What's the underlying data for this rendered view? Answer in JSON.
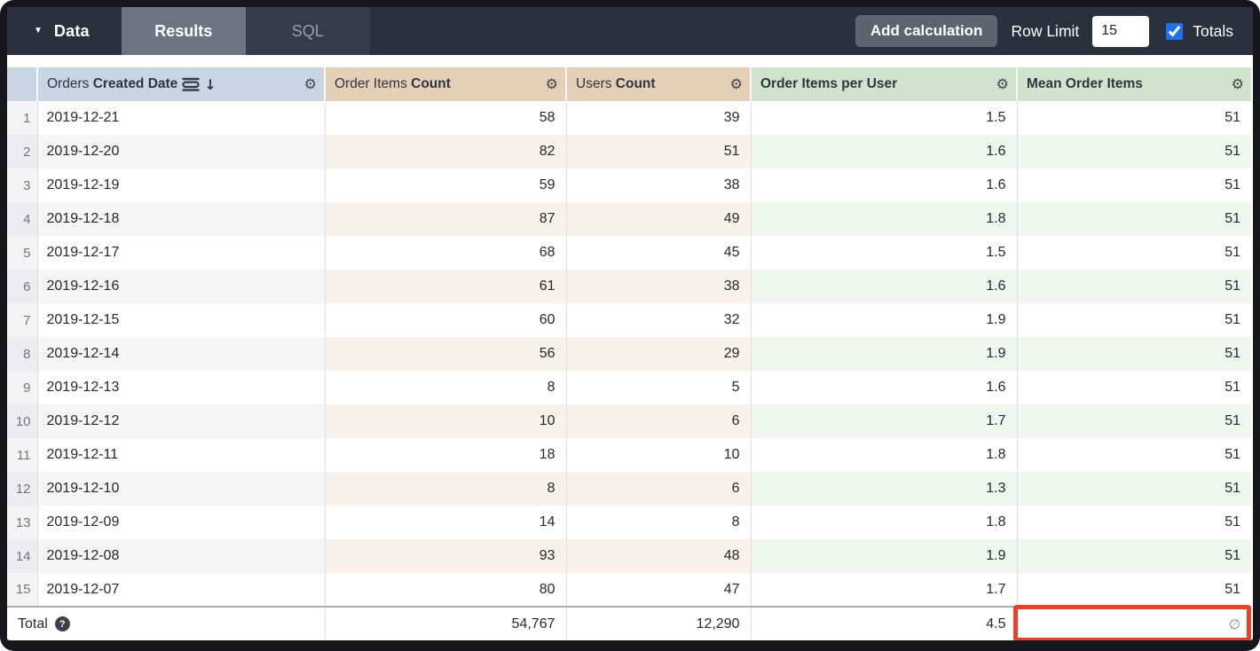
{
  "topbar": {
    "data_menu_label": "Data",
    "tabs": [
      {
        "label": "Results",
        "active": true
      },
      {
        "label": "SQL",
        "active": false
      }
    ],
    "add_calculation_label": "Add calculation",
    "row_limit_label": "Row Limit",
    "row_limit_value": "15",
    "totals_label": "Totals",
    "totals_checked": true
  },
  "icons": {
    "caret": "▼",
    "gear": "⚙",
    "sort_arrow": "↓",
    "help": "?",
    "null_symbol": "∅"
  },
  "table": {
    "columns": [
      {
        "regular": "Orders ",
        "bold": "Created Date",
        "type": "dimension",
        "sorted_desc": true
      },
      {
        "regular": "Order Items ",
        "bold": "Count",
        "type": "measure"
      },
      {
        "regular": "Users ",
        "bold": "Count",
        "type": "measure"
      },
      {
        "regular": "",
        "bold": "Order Items per User",
        "type": "table-calculation"
      },
      {
        "regular": "",
        "bold": "Mean Order Items",
        "type": "table-calculation"
      }
    ],
    "rows": [
      {
        "num": "1",
        "date": "2019-12-21",
        "order_items_count": "58",
        "users_count": "39",
        "order_items_per_user": "1.5",
        "mean_order_items": "51"
      },
      {
        "num": "2",
        "date": "2019-12-20",
        "order_items_count": "82",
        "users_count": "51",
        "order_items_per_user": "1.6",
        "mean_order_items": "51"
      },
      {
        "num": "3",
        "date": "2019-12-19",
        "order_items_count": "59",
        "users_count": "38",
        "order_items_per_user": "1.6",
        "mean_order_items": "51"
      },
      {
        "num": "4",
        "date": "2019-12-18",
        "order_items_count": "87",
        "users_count": "49",
        "order_items_per_user": "1.8",
        "mean_order_items": "51"
      },
      {
        "num": "5",
        "date": "2019-12-17",
        "order_items_count": "68",
        "users_count": "45",
        "order_items_per_user": "1.5",
        "mean_order_items": "51"
      },
      {
        "num": "6",
        "date": "2019-12-16",
        "order_items_count": "61",
        "users_count": "38",
        "order_items_per_user": "1.6",
        "mean_order_items": "51"
      },
      {
        "num": "7",
        "date": "2019-12-15",
        "order_items_count": "60",
        "users_count": "32",
        "order_items_per_user": "1.9",
        "mean_order_items": "51"
      },
      {
        "num": "8",
        "date": "2019-12-14",
        "order_items_count": "56",
        "users_count": "29",
        "order_items_per_user": "1.9",
        "mean_order_items": "51"
      },
      {
        "num": "9",
        "date": "2019-12-13",
        "order_items_count": "8",
        "users_count": "5",
        "order_items_per_user": "1.6",
        "mean_order_items": "51"
      },
      {
        "num": "10",
        "date": "2019-12-12",
        "order_items_count": "10",
        "users_count": "6",
        "order_items_per_user": "1.7",
        "mean_order_items": "51"
      },
      {
        "num": "11",
        "date": "2019-12-11",
        "order_items_count": "18",
        "users_count": "10",
        "order_items_per_user": "1.8",
        "mean_order_items": "51"
      },
      {
        "num": "12",
        "date": "2019-12-10",
        "order_items_count": "8",
        "users_count": "6",
        "order_items_per_user": "1.3",
        "mean_order_items": "51"
      },
      {
        "num": "13",
        "date": "2019-12-09",
        "order_items_count": "14",
        "users_count": "8",
        "order_items_per_user": "1.8",
        "mean_order_items": "51"
      },
      {
        "num": "14",
        "date": "2019-12-08",
        "order_items_count": "93",
        "users_count": "48",
        "order_items_per_user": "1.9",
        "mean_order_items": "51"
      },
      {
        "num": "15",
        "date": "2019-12-07",
        "order_items_count": "80",
        "users_count": "47",
        "order_items_per_user": "1.7",
        "mean_order_items": "51"
      }
    ],
    "totals": {
      "label": "Total",
      "order_items_count": "54,767",
      "users_count": "12,290",
      "order_items_per_user": "4.5",
      "mean_order_items": "∅"
    }
  },
  "annotation": {
    "highlight_color": "#e8432a",
    "target": "totals-mean-order-items-cell"
  }
}
